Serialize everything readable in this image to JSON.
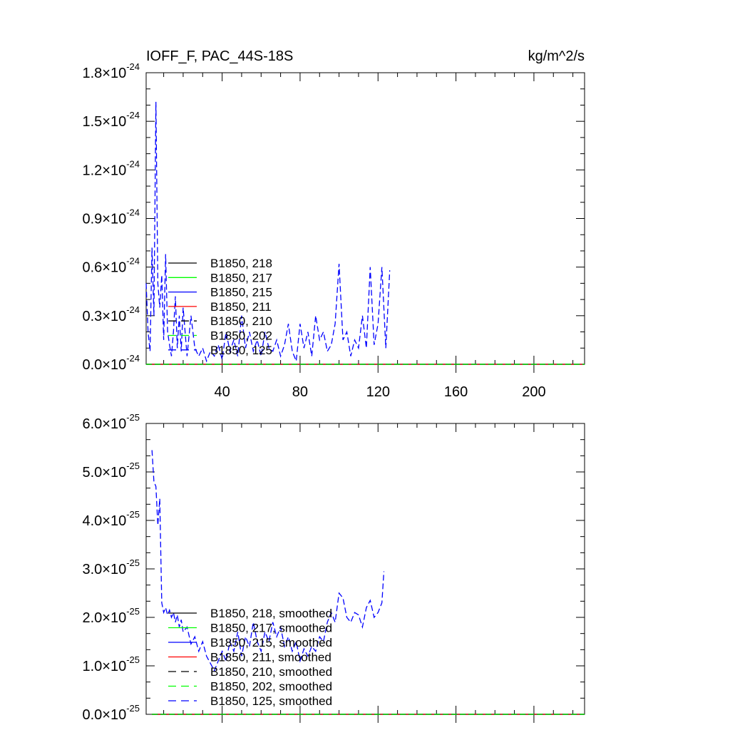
{
  "chart_data": [
    {
      "type": "line",
      "title": "IOFF_F, PAC_44S-18S",
      "units": "kg/m^2/s",
      "xlabel": "",
      "ylabel": "",
      "xlim": [
        1,
        226
      ],
      "ylim": [
        0,
        1.8e-24
      ],
      "xticks": [
        40,
        80,
        120,
        160,
        200
      ],
      "xtick_labels": [
        "40",
        "80",
        "120",
        "160",
        "200"
      ],
      "yticks": [
        0,
        3e-25,
        6e-25,
        9e-25,
        1.2e-24,
        1.5e-24,
        1.8e-24
      ],
      "ytick_mantissas": [
        "0.0",
        "0.3",
        "0.6",
        "0.9",
        "1.2",
        "1.5",
        "1.8"
      ],
      "ytick_exponent": "-24",
      "legend_placement": "lower-left",
      "series": [
        {
          "name": "B1850, 218",
          "color": "#000000",
          "dash": "solid",
          "x": [
            1,
            226
          ],
          "values": [
            0,
            0
          ]
        },
        {
          "name": "B1850, 217",
          "color": "#00ff00",
          "dash": "solid",
          "x": [
            1,
            226
          ],
          "values": [
            0,
            0
          ]
        },
        {
          "name": "B1850, 215",
          "color": "#0000ff",
          "dash": "solid",
          "x": [
            1,
            226
          ],
          "values": [
            0,
            0
          ]
        },
        {
          "name": "B1850, 211",
          "color": "#ff0000",
          "dash": "solid",
          "x": [
            1,
            226
          ],
          "values": [
            0,
            0
          ]
        },
        {
          "name": "B1850, 210",
          "color": "#000000",
          "dash": "dashed",
          "x": [
            1,
            226
          ],
          "values": [
            0,
            0
          ]
        },
        {
          "name": "B1850, 202",
          "color": "#00ff00",
          "dash": "dashed",
          "x": [
            1,
            226
          ],
          "values": [
            0,
            0
          ]
        },
        {
          "name": "B1850, 125",
          "color": "#0000ff",
          "dash": "dashed",
          "x": [
            1,
            2,
            3,
            4,
            5,
            6,
            7,
            8,
            9,
            10,
            11,
            12,
            13,
            14,
            15,
            16,
            17,
            18,
            19,
            20,
            22,
            24,
            26,
            28,
            30,
            32,
            34,
            36,
            38,
            40,
            42,
            44,
            46,
            48,
            50,
            52,
            54,
            56,
            58,
            60,
            62,
            64,
            66,
            68,
            70,
            72,
            74,
            76,
            78,
            80,
            82,
            84,
            86,
            88,
            90,
            92,
            94,
            96,
            98,
            100,
            102,
            104,
            106,
            108,
            110,
            112,
            114,
            116,
            118,
            120,
            122,
            124,
            126
          ],
          "values": [
            5e-25,
            2e-25,
            8e-26,
            7.2e-25,
            3e-25,
            1.62e-24,
            5e-25,
            3.5e-25,
            5.5e-25,
            1.5e-25,
            6.8e-25,
            2e-25,
            1.2e-25,
            5e-26,
            2e-25,
            4.2e-25,
            1e-25,
            3e-25,
            8e-26,
            3.5e-25,
            5e-26,
            3e-25,
            1e-25,
            5e-26,
            1e-25,
            2e-26,
            8e-26,
            5e-26,
            1.2e-25,
            3e-26,
            2e-25,
            8e-26,
            1.5e-25,
            5e-26,
            3e-25,
            1e-25,
            2e-25,
            8e-26,
            1.5e-25,
            5e-26,
            2e-25,
            1e-25,
            8e-26,
            1.5e-25,
            5e-26,
            1.2e-25,
            2.5e-25,
            8e-26,
            2e-26,
            2.5e-25,
            1e-25,
            2e-25,
            5e-26,
            3e-25,
            1.5e-25,
            2e-25,
            8e-26,
            1.2e-25,
            2.5e-25,
            6.2e-25,
            1.5e-25,
            2e-25,
            5e-26,
            1.5e-25,
            1e-25,
            3e-25,
            1e-25,
            6e-25,
            1.2e-25,
            2.5e-25,
            6e-25,
            1e-25,
            5.8e-25
          ]
        }
      ]
    },
    {
      "type": "line",
      "title": "",
      "xlabel": "",
      "ylabel": "",
      "xlim": [
        1,
        226
      ],
      "ylim": [
        0,
        6e-25
      ],
      "xticks": [
        40,
        80,
        120,
        160,
        200
      ],
      "xtick_labels": [
        "",
        "",
        "",
        "",
        ""
      ],
      "yticks": [
        0,
        1e-25,
        2e-25,
        3e-25,
        4e-25,
        5e-25,
        6e-25
      ],
      "ytick_mantissas": [
        "0.0",
        "1.0",
        "2.0",
        "3.0",
        "4.0",
        "5.0",
        "6.0"
      ],
      "ytick_exponent": "-25",
      "legend_placement": "lower-left",
      "series": [
        {
          "name": "B1850, 218, smoothed",
          "color": "#000000",
          "dash": "solid",
          "x": [
            4,
            226
          ],
          "values": [
            0,
            0
          ]
        },
        {
          "name": "B1850, 217, smoothed",
          "color": "#00ff00",
          "dash": "solid",
          "x": [
            4,
            226
          ],
          "values": [
            0,
            0
          ]
        },
        {
          "name": "B1850, 215, smoothed",
          "color": "#0000ff",
          "dash": "solid",
          "x": [
            4,
            226
          ],
          "values": [
            0,
            0
          ]
        },
        {
          "name": "B1850, 211, smoothed",
          "color": "#ff0000",
          "dash": "solid",
          "x": [
            4,
            226
          ],
          "values": [
            0,
            0
          ]
        },
        {
          "name": "B1850, 210, smoothed",
          "color": "#000000",
          "dash": "dashed",
          "x": [
            4,
            226
          ],
          "values": [
            0,
            0
          ]
        },
        {
          "name": "B1850, 202, smoothed",
          "color": "#00ff00",
          "dash": "dashed",
          "x": [
            4,
            226
          ],
          "values": [
            0,
            0
          ]
        },
        {
          "name": "B1850, 125, smoothed",
          "color": "#0000ff",
          "dash": "dashed",
          "x": [
            4,
            5,
            6,
            7,
            8,
            9,
            10,
            11,
            12,
            13,
            14,
            15,
            16,
            17,
            18,
            19,
            20,
            22,
            24,
            26,
            28,
            30,
            32,
            34,
            36,
            38,
            40,
            42,
            44,
            46,
            48,
            50,
            52,
            54,
            56,
            58,
            60,
            62,
            64,
            66,
            68,
            70,
            72,
            74,
            76,
            78,
            80,
            82,
            84,
            86,
            88,
            90,
            92,
            94,
            96,
            98,
            100,
            102,
            104,
            106,
            108,
            110,
            112,
            114,
            116,
            118,
            120,
            122,
            123
          ],
          "values": [
            5.45e-25,
            4.8e-25,
            4.7e-25,
            3.9e-25,
            4.45e-25,
            2.3e-25,
            2.1e-25,
            2.2e-25,
            2.05e-25,
            2.15e-25,
            2e-25,
            2.1e-25,
            1.9e-25,
            2.05e-25,
            1.8e-25,
            1.95e-25,
            1.7e-25,
            1.8e-25,
            1.45e-25,
            1.6e-25,
            1.3e-25,
            1.5e-25,
            1.2e-25,
            1.05e-25,
            9e-26,
            1.1e-25,
            1.3e-25,
            1.1e-25,
            1.5e-25,
            1.3e-25,
            1.7e-25,
            1.2e-25,
            1.6e-25,
            1.4e-25,
            1.9e-25,
            1.5e-25,
            1.3e-25,
            1.7e-25,
            1.5e-25,
            1.9e-25,
            1.6e-25,
            1.8e-25,
            1.4e-25,
            1.6e-25,
            1.3e-25,
            1.5e-25,
            1.1e-25,
            1.35e-25,
            1.2e-25,
            1.4e-25,
            1.3e-25,
            1.6e-25,
            1.5e-25,
            1.9e-25,
            2.1e-25,
            1.9e-25,
            2.5e-25,
            2.4e-25,
            2e-25,
            1.9e-25,
            2.1e-25,
            2.05e-25,
            1.8e-25,
            2.2e-25,
            2.35e-25,
            2e-25,
            2.1e-25,
            2.3e-25,
            2.95e-25
          ]
        }
      ]
    }
  ]
}
